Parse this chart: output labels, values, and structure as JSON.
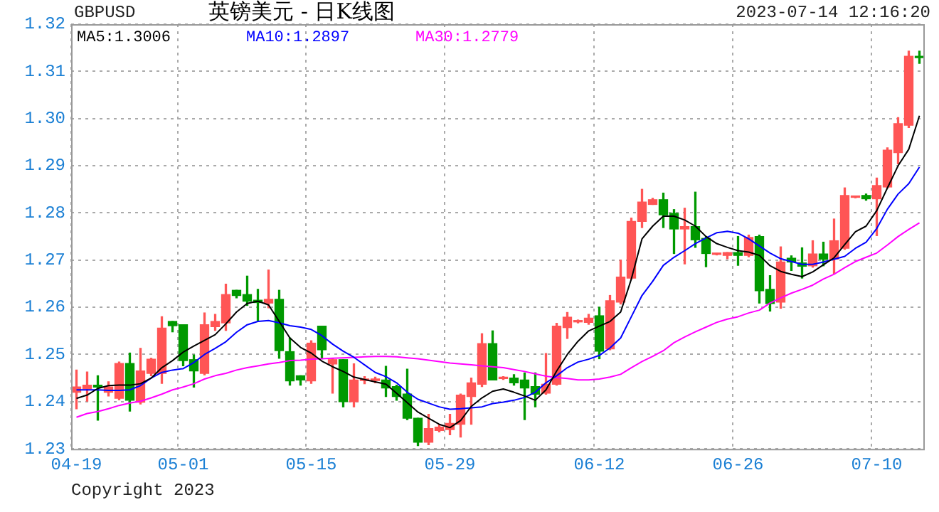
{
  "chart_data": {
    "type": "candlestick",
    "title": "英镑美元 - 日K线图",
    "annotations": [
      "GBPUSD",
      "2023-07-14 12:16:20",
      "Copyright 2023"
    ],
    "categories": [
      "04-19",
      null,
      null,
      null,
      null,
      null,
      null,
      null,
      null,
      null,
      "05-01",
      null,
      null,
      null,
      null,
      null,
      null,
      null,
      null,
      null,
      null,
      null,
      "05-15",
      null,
      null,
      null,
      null,
      null,
      null,
      null,
      null,
      null,
      null,
      null,
      null,
      "05-29",
      null,
      null,
      null,
      null,
      null,
      null,
      null,
      null,
      null,
      null,
      null,
      null,
      null,
      "06-12",
      null,
      null,
      null,
      null,
      null,
      null,
      null,
      null,
      null,
      null,
      null,
      null,
      "06-26",
      null,
      null,
      null,
      null,
      null,
      null,
      null,
      null,
      null,
      null,
      null,
      null,
      "07-10",
      null,
      null,
      null,
      null
    ],
    "ohlc": [
      [
        1.242,
        1.2467,
        1.2385,
        1.2431
      ],
      [
        1.2427,
        1.2463,
        1.2401,
        1.2435
      ],
      [
        1.2435,
        1.2455,
        1.2361,
        1.2431
      ],
      [
        1.242,
        1.2442,
        1.2412,
        1.2431
      ],
      [
        1.2407,
        1.2484,
        1.2404,
        1.2481
      ],
      [
        1.2481,
        1.2503,
        1.238,
        1.2403
      ],
      [
        1.2399,
        1.2513,
        1.2395,
        1.2465
      ],
      [
        1.246,
        1.2492,
        1.2455,
        1.249
      ],
      [
        1.246,
        1.258,
        1.2439,
        1.2556
      ],
      [
        1.257,
        1.257,
        1.2548,
        1.2561
      ],
      [
        1.2563,
        1.2563,
        1.2476,
        1.2487
      ],
      [
        1.2489,
        1.2499,
        1.2431,
        1.2465
      ],
      [
        1.246,
        1.2588,
        1.2457,
        1.2563
      ],
      [
        1.2559,
        1.2585,
        1.2551,
        1.257
      ],
      [
        1.2567,
        1.2649,
        1.2551,
        1.2627
      ],
      [
        1.2636,
        1.2636,
        1.262,
        1.2625
      ],
      [
        1.2627,
        1.2666,
        1.2604,
        1.2613
      ],
      [
        1.2615,
        1.2638,
        1.2572,
        1.261
      ],
      [
        1.2609,
        1.2679,
        1.2599,
        1.2617
      ],
      [
        1.2617,
        1.2636,
        1.2492,
        1.2508
      ],
      [
        1.2506,
        1.2535,
        1.2435,
        1.2444
      ],
      [
        1.2455,
        1.2455,
        1.2435,
        1.2446
      ],
      [
        1.2444,
        1.2529,
        1.2439,
        1.2524
      ],
      [
        1.256,
        1.256,
        1.2491,
        1.251
      ],
      [
        1.248,
        1.2491,
        1.2418,
        1.2489
      ],
      [
        1.2489,
        1.2489,
        1.2389,
        1.24
      ],
      [
        1.24,
        1.248,
        1.2389,
        1.2446
      ],
      [
        1.2445,
        1.2453,
        1.2438,
        1.2446
      ],
      [
        1.2445,
        1.2452,
        1.244,
        1.2447
      ],
      [
        1.2446,
        1.2475,
        1.2411,
        1.2429
      ],
      [
        1.2432,
        1.2435,
        1.2403,
        1.2411
      ],
      [
        1.2416,
        1.2469,
        1.2362,
        1.2365
      ],
      [
        1.2365,
        1.2365,
        1.2307,
        1.2314
      ],
      [
        1.2314,
        1.2373,
        1.2309,
        1.2343
      ],
      [
        1.2339,
        1.2352,
        1.2336,
        1.2346
      ],
      [
        1.2341,
        1.2373,
        1.233,
        1.2354
      ],
      [
        1.2352,
        1.2416,
        1.2325,
        1.2414
      ],
      [
        1.2411,
        1.245,
        1.2352,
        1.244
      ],
      [
        1.2437,
        1.2544,
        1.2432,
        1.2523
      ],
      [
        1.2523,
        1.255,
        1.2446,
        1.2446
      ],
      [
        1.2449,
        1.2453,
        1.2447,
        1.2451
      ],
      [
        1.245,
        1.2457,
        1.2435,
        1.244
      ],
      [
        1.2446,
        1.2461,
        1.2362,
        1.2429
      ],
      [
        1.2432,
        1.2461,
        1.2389,
        1.2416
      ],
      [
        1.2418,
        1.2502,
        1.2416,
        1.2437
      ],
      [
        1.2437,
        1.2566,
        1.2435,
        1.256
      ],
      [
        1.2557,
        1.2589,
        1.2534,
        1.2579
      ],
      [
        1.2569,
        1.2573,
        1.2567,
        1.2571
      ],
      [
        1.2568,
        1.2585,
        1.2564,
        1.2577
      ],
      [
        1.2582,
        1.26,
        1.2491,
        1.2507
      ],
      [
        1.2512,
        1.2625,
        1.251,
        1.2614
      ],
      [
        1.2611,
        1.27,
        1.2607,
        1.2664
      ],
      [
        1.2662,
        1.2789,
        1.266,
        1.2782
      ],
      [
        1.2782,
        1.285,
        1.2769,
        1.2823
      ],
      [
        1.2818,
        1.2831,
        1.2818,
        1.2828
      ],
      [
        1.2828,
        1.2842,
        1.2769,
        1.2796
      ],
      [
        1.2799,
        1.2807,
        1.2714,
        1.2766
      ],
      [
        1.2766,
        1.281,
        1.2692,
        1.2771
      ],
      [
        1.2771,
        1.2844,
        1.2727,
        1.2743
      ],
      [
        1.2746,
        1.275,
        1.2686,
        1.2714
      ],
      [
        1.2712,
        1.2714,
        1.2711,
        1.2713
      ],
      [
        1.271,
        1.2716,
        1.2703,
        1.2716
      ],
      [
        1.2716,
        1.275,
        1.2689,
        1.271
      ],
      [
        1.271,
        1.2753,
        1.2707,
        1.2748
      ],
      [
        1.275,
        1.2753,
        1.2609,
        1.2635
      ],
      [
        1.2638,
        1.2667,
        1.2592,
        1.2608
      ],
      [
        1.2611,
        1.2728,
        1.2598,
        1.2696
      ],
      [
        1.2704,
        1.2709,
        1.2678,
        1.2696
      ],
      [
        1.2694,
        1.2726,
        1.2662,
        1.2687
      ],
      [
        1.2688,
        1.2741,
        1.2685,
        1.2713
      ],
      [
        1.2713,
        1.2738,
        1.2688,
        1.2702
      ],
      [
        1.2702,
        1.2787,
        1.2672,
        1.2741
      ],
      [
        1.2725,
        1.2853,
        1.2723,
        1.2837
      ],
      [
        1.2833,
        1.2835,
        1.2832,
        1.2834
      ],
      [
        1.2837,
        1.284,
        1.2827,
        1.283
      ],
      [
        1.283,
        1.2874,
        1.2752,
        1.2858
      ],
      [
        1.2855,
        1.2938,
        1.2853,
        1.2933
      ],
      [
        1.2928,
        1.3002,
        1.2904,
        1.2989
      ],
      [
        1.2986,
        1.3143,
        1.2981,
        1.3132
      ],
      [
        1.3131,
        1.3143,
        1.3117,
        1.3129
      ]
    ],
    "colors": [
      "#ff5555",
      "#ff5555",
      "#009900",
      "#ff5555",
      "#ff5555",
      "#009900",
      "#ff5555",
      "#ff5555",
      "#ff5555",
      "#009900",
      "#009900",
      "#009900",
      "#ff5555",
      "#ff5555",
      "#ff5555",
      "#009900",
      "#009900",
      "#009900",
      "#ff5555",
      "#009900",
      "#009900",
      "#009900",
      "#ff5555",
      "#009900",
      "#ff5555",
      "#009900",
      "#ff5555",
      "#ff5555",
      "#ff5555",
      "#009900",
      "#009900",
      "#009900",
      "#009900",
      "#ff5555",
      "#ff5555",
      "#ff5555",
      "#ff5555",
      "#ff5555",
      "#ff5555",
      "#009900",
      "#ff5555",
      "#009900",
      "#009900",
      "#009900",
      "#ff5555",
      "#ff5555",
      "#ff5555",
      "#ff5555",
      "#ff5555",
      "#009900",
      "#ff5555",
      "#ff5555",
      "#ff5555",
      "#ff5555",
      "#ff5555",
      "#009900",
      "#009900",
      "#ff5555",
      "#009900",
      "#009900",
      "#ff5555",
      "#ff5555",
      "#009900",
      "#ff5555",
      "#009900",
      "#009900",
      "#ff5555",
      "#009900",
      "#009900",
      "#ff5555",
      "#009900",
      "#ff5555",
      "#ff5555",
      "#ff5555",
      "#009900",
      "#ff5555",
      "#ff5555",
      "#ff5555",
      "#ff5555",
      "#009900"
    ],
    "series": [
      {
        "type": "line",
        "name": "MA5:1.3006",
        "color": "#000000",
        "values": [
          1.2407,
          1.2414,
          1.2428,
          1.2434,
          1.2435,
          1.2435,
          1.2438,
          1.245,
          1.2472,
          1.2487,
          1.2505,
          1.2518,
          1.253,
          1.2542,
          1.2565,
          1.259,
          1.2608,
          1.2613,
          1.2605,
          1.257,
          1.2535,
          1.2515,
          1.2503,
          1.2486,
          1.2474,
          1.2464,
          1.2452,
          1.2447,
          1.2442,
          1.2437,
          1.2418,
          1.2398,
          1.2378,
          1.2365,
          1.2352,
          1.2345,
          1.236,
          1.239,
          1.2408,
          1.2422,
          1.2427,
          1.242,
          1.2412,
          1.2403,
          1.2425,
          1.2465,
          1.25,
          1.2528,
          1.255,
          1.256,
          1.257,
          1.259,
          1.266,
          1.2745,
          1.2772,
          1.2793,
          1.2793,
          1.2785,
          1.2772,
          1.275,
          1.2735,
          1.2727,
          1.272,
          1.2717,
          1.271,
          1.2688,
          1.2676,
          1.267,
          1.2665,
          1.2675,
          1.269,
          1.2705,
          1.2733,
          1.276,
          1.2772,
          1.2805,
          1.2853,
          1.29,
          1.2935,
          1.3006
        ]
      },
      {
        "type": "line",
        "name": "MA10:1.2897",
        "color": "#0000ff",
        "values": [
          1.2425,
          1.2425,
          1.2425,
          1.2424,
          1.2424,
          1.2425,
          1.2434,
          1.245,
          1.2462,
          1.2467,
          1.247,
          1.2483,
          1.25,
          1.2513,
          1.2527,
          1.2547,
          1.2563,
          1.257,
          1.2572,
          1.2567,
          1.2561,
          1.2558,
          1.2553,
          1.254,
          1.2522,
          1.2507,
          1.2494,
          1.2478,
          1.2462,
          1.2453,
          1.244,
          1.242,
          1.2405,
          1.2397,
          1.2389,
          1.2384,
          1.2385,
          1.2387,
          1.2389,
          1.2396,
          1.2399,
          1.2403,
          1.2409,
          1.242,
          1.244,
          1.2455,
          1.2472,
          1.2484,
          1.249,
          1.2498,
          1.2514,
          1.2535,
          1.258,
          1.2625,
          1.2655,
          1.2689,
          1.2706,
          1.272,
          1.2735,
          1.2747,
          1.2758,
          1.2761,
          1.2757,
          1.2745,
          1.273,
          1.2715,
          1.2703,
          1.2697,
          1.2691,
          1.2691,
          1.2696,
          1.2702,
          1.2708,
          1.2725,
          1.2738,
          1.2767,
          1.2808,
          1.284,
          1.2862,
          1.2897
        ]
      },
      {
        "type": "line",
        "name": "MA30:1.2779",
        "color": "#ff00ff",
        "values": [
          1.2367,
          1.2375,
          1.2379,
          1.2385,
          1.2392,
          1.2397,
          1.2401,
          1.2408,
          1.2416,
          1.2425,
          1.2431,
          1.2438,
          1.2448,
          1.2455,
          1.246,
          1.2467,
          1.2472,
          1.2476,
          1.248,
          1.2483,
          1.2487,
          1.2488,
          1.249,
          1.2491,
          1.2492,
          1.2493,
          1.2494,
          1.2495,
          1.2496,
          1.2496,
          1.2495,
          1.2493,
          1.2491,
          1.2488,
          1.2485,
          1.2482,
          1.248,
          1.2478,
          1.2476,
          1.2474,
          1.2472,
          1.2468,
          1.2464,
          1.2459,
          1.2454,
          1.2451,
          1.2449,
          1.2446,
          1.2446,
          1.2448,
          1.2452,
          1.2458,
          1.2472,
          1.2485,
          1.2496,
          1.2508,
          1.2525,
          1.2537,
          1.2548,
          1.2558,
          1.2568,
          1.2575,
          1.258,
          1.2588,
          1.2594,
          1.2609,
          1.262,
          1.263,
          1.2638,
          1.2647,
          1.266,
          1.267,
          1.2684,
          1.2697,
          1.2706,
          1.2715,
          1.2732,
          1.275,
          1.2765,
          1.2779
        ]
      }
    ],
    "ylim": [
      1.23,
      1.32
    ],
    "yticks": [
      {
        "value": 1.23,
        "label": "1.23"
      },
      {
        "value": 1.24,
        "label": "1.24"
      },
      {
        "value": 1.25,
        "label": "1.25"
      },
      {
        "value": 1.26,
        "label": "1.26"
      },
      {
        "value": 1.27,
        "label": "1.27"
      },
      {
        "value": 1.28,
        "label": "1.28"
      },
      {
        "value": 1.29,
        "label": "1.29"
      },
      {
        "value": 1.3,
        "label": "1.30"
      },
      {
        "value": 1.31,
        "label": "1.31"
      },
      {
        "value": 1.32,
        "label": "1.32"
      }
    ],
    "grid": true,
    "legend": "top left"
  }
}
